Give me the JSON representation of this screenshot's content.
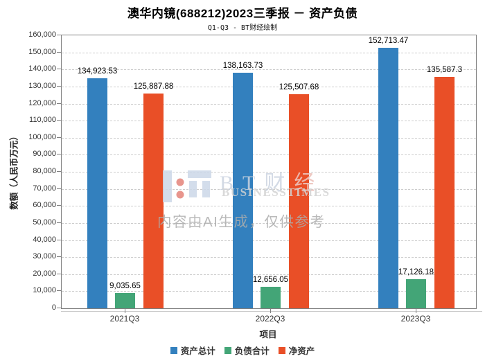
{
  "chart_data": {
    "type": "bar",
    "title": "澳华内镜(688212)2023三季报 － 资产负债",
    "subtitle": "Q1-Q3 - BT财经绘制",
    "xlabel": "项目",
    "ylabel": "数额（人民币万元）",
    "categories": [
      "2021Q3",
      "2022Q3",
      "2023Q3"
    ],
    "series": [
      {
        "name": "资产总计",
        "color": "#3380be",
        "values": [
          134923.53,
          138163.73,
          152713.47
        ],
        "labels": [
          "134,923.53",
          "138,163.73",
          "152,713.47"
        ]
      },
      {
        "name": "负债合计",
        "color": "#43a577",
        "values": [
          9035.65,
          12656.05,
          17126.18
        ],
        "labels": [
          "9,035.65",
          "12,656.05",
          "17,126.18"
        ]
      },
      {
        "name": "净资产",
        "color": "#e94f27",
        "values": [
          125887.88,
          125507.68,
          135587.3
        ],
        "labels": [
          "125,887.88",
          "125,507.68",
          "135,587.3"
        ]
      }
    ],
    "ylim": [
      0,
      160000
    ],
    "ytick_step": 10000,
    "grid": true,
    "grid_style": "dashed",
    "legend_position": "bottom"
  },
  "watermark": {
    "brand_cn_1": "BT财",
    "brand_cn_2": "经",
    "brand_en": "BUSINESSTIMES",
    "disclaimer": "内容由AI生成，仅供参考"
  }
}
